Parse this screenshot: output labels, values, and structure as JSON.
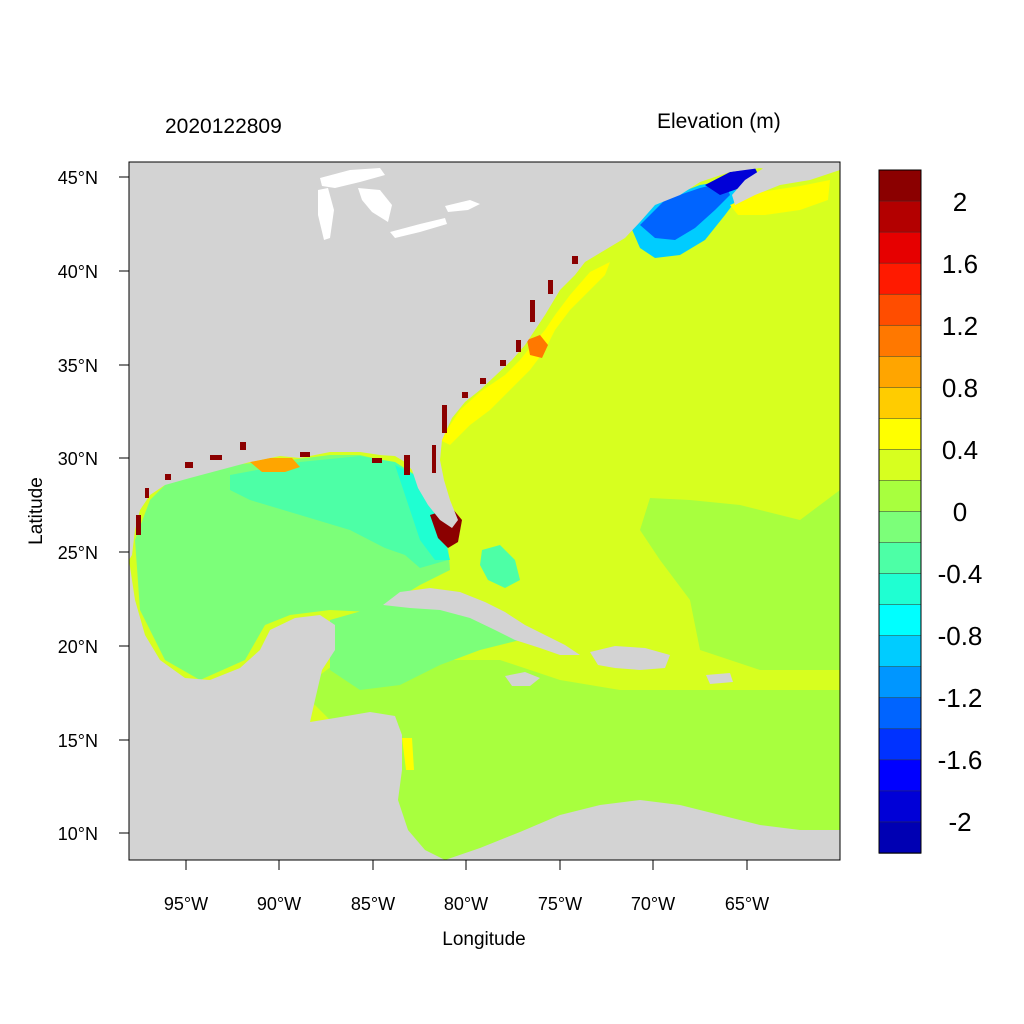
{
  "map": {
    "timestamp": "2020122809",
    "variable": "Elevation (m)",
    "xlabel": "Longitude",
    "ylabel": "Latitude",
    "lon_ticks": [
      "95°W",
      "90°W",
      "85°W",
      "80°W",
      "75°W",
      "70°W",
      "65°W"
    ],
    "lat_ticks": [
      "45°N",
      "40°N",
      "35°N",
      "30°N",
      "25°N",
      "20°N",
      "15°N",
      "10°N"
    ],
    "lon_range": [
      -98.2,
      -60.2
    ],
    "lat_range": [
      8.5,
      45.8
    ],
    "land_color": "#d3d3d3",
    "colorbar": {
      "labels": [
        "2",
        "1.6",
        "1.2",
        "0.8",
        "0.4",
        "0",
        "-0.4",
        "-0.8",
        "-1.2",
        "-1.6",
        "-2"
      ],
      "colors_top_to_bottom": [
        "#8b0000",
        "#b30000",
        "#e60000",
        "#ff1a00",
        "#ff4d00",
        "#ff7800",
        "#ffa500",
        "#ffcc00",
        "#ffff00",
        "#d7ff1f",
        "#a8ff3e",
        "#7cff79",
        "#4dffa6",
        "#1fffd2",
        "#00ffff",
        "#00ccff",
        "#0096ff",
        "#0064ff",
        "#0032ff",
        "#0000ff",
        "#0000d7",
        "#0000b3"
      ]
    }
  }
}
